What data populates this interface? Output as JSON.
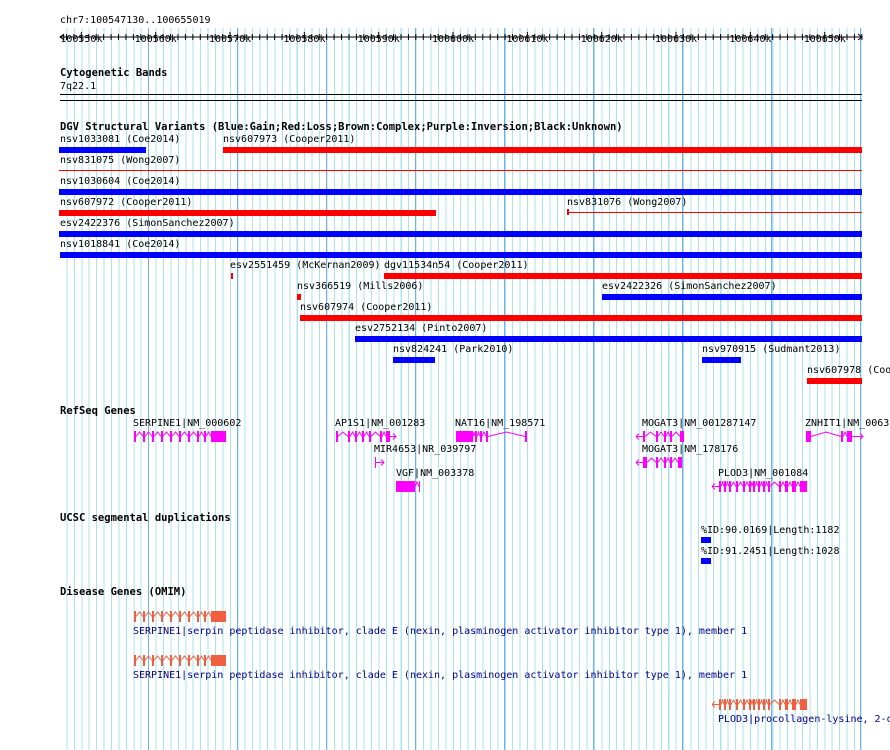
{
  "ruler": {
    "location": "chr7:100547130..100655019",
    "ticks": [
      "100550k",
      "100560k",
      "100570k",
      "100580k",
      "100590k",
      "100600k",
      "100610k",
      "100620k",
      "100630k",
      "100640k",
      "100650k"
    ]
  },
  "cyto": {
    "title": "Cytogenetic Bands",
    "band": "7q22.1"
  },
  "dgv": {
    "title": "DGV Structural Variants (Blue:Gain;Red:Loss;Brown:Complex;Purple:Inversion;Black:Unknown)",
    "features": [
      {
        "label": "nsv1033081 (Coe2014)",
        "type": "Gain"
      },
      {
        "label": "nsv607973 (Cooper2011)",
        "type": "Loss"
      },
      {
        "label": "nsv831075 (Wong2007)",
        "type": "Loss"
      },
      {
        "label": "nsv1030604 (Coe2014)",
        "type": "Gain"
      },
      {
        "label": "nsv607972 (Cooper2011)",
        "type": "Loss"
      },
      {
        "label": "nsv831076 (Wong2007)",
        "type": "Loss"
      },
      {
        "label": "esv2422376 (SimonSanchez2007)",
        "type": "Gain"
      },
      {
        "label": "nsv1018841 (Coe2014)",
        "type": "Gain"
      },
      {
        "label": "esv2551459 (McKernan2009)",
        "type": "Loss"
      },
      {
        "label": "dgv11534n54 (Cooper2011)",
        "type": "Loss"
      },
      {
        "label": "nsv366519 (Mills2006)",
        "type": "Loss"
      },
      {
        "label": "esv2422326 (SimonSanchez2007)",
        "type": "Gain"
      },
      {
        "label": "nsv607974 (Cooper2011)",
        "type": "Loss"
      },
      {
        "label": "esv2752134 (Pinto2007)",
        "type": "Gain"
      },
      {
        "label": "nsv824241 (Park2010)",
        "type": "Gain"
      },
      {
        "label": "nsv970915 (Sudmant2013)",
        "type": "Gain"
      },
      {
        "label": "nsv607978 (Coo",
        "type": "Loss"
      }
    ]
  },
  "refseq": {
    "title": "RefSeq Genes",
    "genes": [
      "SERPINE1|NM_000602",
      "AP1S1|NM_001283",
      "NAT16|NM_198571",
      "MOGAT3|NM_001287147",
      "ZNHIT1|NM_0063",
      "MIR4653|NR_039797",
      "MOGAT3|NM_178176",
      "VGF|NM_003378",
      "PLOD3|NM_001084"
    ]
  },
  "segdup": {
    "title": "UCSC segmental duplications",
    "items": [
      "%ID:90.0169|Length:1182",
      "%ID:91.2451|Length:1028"
    ]
  },
  "omim": {
    "title": "Disease Genes (OMIM)",
    "items": [
      "SERPINE1|serpin peptidase inhibitor, clade E (nexin, plasminogen activator inhibitor type 1), member 1",
      "SERPINE1|serpin peptidase inhibitor, clade E (nexin, plasminogen activator inhibitor type 1), member 1",
      "PLOD3|procollagen-lysine, 2-o"
    ]
  },
  "colors": {
    "gain": "#0000ff",
    "loss": "#ff0000",
    "gene": "#ff00ff",
    "disease": "#f06040",
    "grid": "#a8e4ee"
  }
}
